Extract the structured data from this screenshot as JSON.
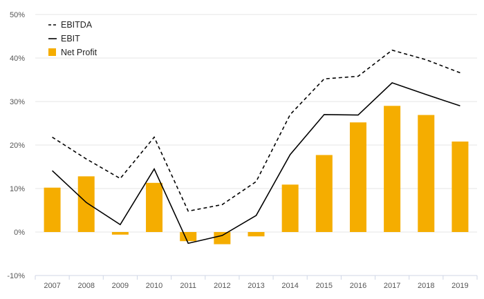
{
  "chart_data": {
    "type": "bar+line",
    "title": "",
    "xlabel": "",
    "ylabel": "",
    "categories": [
      "2007",
      "2008",
      "2009",
      "2010",
      "2011",
      "2012",
      "2013",
      "2014",
      "2015",
      "2016",
      "2017",
      "2018",
      "2019"
    ],
    "ylim": [
      -10,
      50
    ],
    "yticks": [
      -10,
      0,
      10,
      20,
      30,
      40,
      50
    ],
    "ytick_labels": [
      "-10%",
      "0%",
      "10%",
      "20%",
      "30%",
      "40%",
      "50%"
    ],
    "grid": true,
    "legend_position": "top-left",
    "series": [
      {
        "name": "EBITDA",
        "kind": "line",
        "style": "dashed",
        "color": "#000000",
        "values": [
          21.8,
          16.8,
          12.3,
          21.8,
          4.8,
          6.3,
          11.6,
          27.0,
          35.2,
          35.8,
          41.8,
          39.6,
          36.6
        ]
      },
      {
        "name": "EBIT",
        "kind": "line",
        "style": "solid",
        "color": "#000000",
        "values": [
          14.1,
          6.8,
          1.7,
          14.5,
          -2.6,
          -0.8,
          3.8,
          17.8,
          27.0,
          26.9,
          34.3,
          31.6,
          29.0
        ]
      },
      {
        "name": "Net Profit",
        "kind": "bar",
        "color": "#f5ad00",
        "values": [
          10.2,
          12.8,
          -0.6,
          11.3,
          -2.1,
          -2.8,
          -1.0,
          10.9,
          17.7,
          25.2,
          29.0,
          26.9,
          20.8
        ]
      }
    ]
  }
}
